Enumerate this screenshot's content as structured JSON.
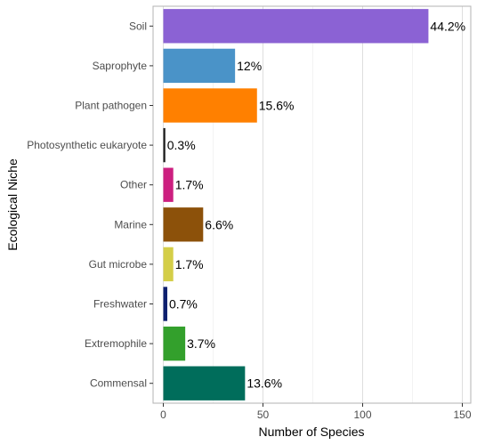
{
  "chart_data": {
    "type": "bar",
    "orientation": "horizontal",
    "xlabel": "Number of Species",
    "ylabel": "Ecological Niche",
    "xlim": [
      0,
      155
    ],
    "xticks": [
      0,
      50,
      100,
      150
    ],
    "grid": true,
    "categories": [
      "Soil",
      "Saprophyte",
      "Plant pathogen",
      "Photosynthetic eukaryote",
      "Other",
      "Marine",
      "Gut microbe",
      "Freshwater",
      "Extremophile",
      "Commensal"
    ],
    "values": [
      133,
      36,
      47,
      1,
      5,
      20,
      5,
      2,
      11,
      41
    ],
    "labels": [
      "44.2%",
      "12%",
      "15.6%",
      "0.3%",
      "1.7%",
      "6.6%",
      "1.7%",
      "0.7%",
      "3.7%",
      "13.6%"
    ],
    "colors": [
      "#8B62D4",
      "#4A93C8",
      "#FF8000",
      "#1A1A1A",
      "#CC1F80",
      "#8C510A",
      "#D4CE48",
      "#0D1F6E",
      "#33A02C",
      "#006D5B"
    ]
  }
}
